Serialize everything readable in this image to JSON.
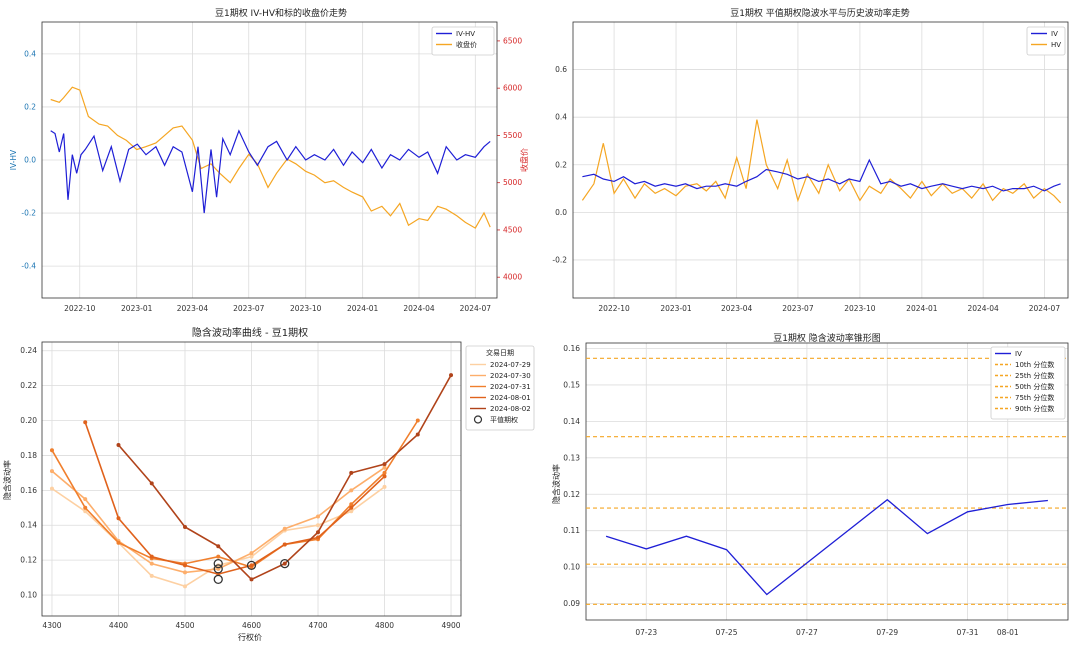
{
  "chart_data": [
    {
      "type": "line",
      "title": "豆1期权 IV-HV和标的收盘价走势",
      "xlabel": "",
      "ylabel": "IV-HV",
      "y2label": "收盘价",
      "xlim": [
        "2022-08-01",
        "2024-08-05"
      ],
      "ylim": [
        -0.52,
        0.52
      ],
      "y2lim": [
        3780,
        6700
      ],
      "yticks": [
        -0.4,
        -0.2,
        0.0,
        0.2,
        0.4
      ],
      "ytick_labels": [
        "-0.4",
        "-0.2",
        "0.0",
        "0.2",
        "0.4"
      ],
      "y2ticks": [
        4000,
        4500,
        5000,
        5500,
        6000,
        6500
      ],
      "y2tick_labels": [
        "4000",
        "4500",
        "5000",
        "5500",
        "6000",
        "6500"
      ],
      "xticks": [
        "2022-10-01",
        "2023-01-01",
        "2023-04-01",
        "2023-07-01",
        "2023-10-01",
        "2024-01-01",
        "2024-04-01",
        "2024-07-01"
      ],
      "xtick_labels": [
        "2022-10",
        "2023-01",
        "2023-04",
        "2023-07",
        "2023-10",
        "2024-01",
        "2024-04",
        "2024-07"
      ],
      "grid": true,
      "legend": "top-right",
      "colors": {
        "series1": "#1f1fd6",
        "series2": "#f5a623",
        "yaxis": "#1f77b4",
        "y2axis": "#d62728"
      },
      "series": [
        {
          "name": "IV-HV",
          "axis": "left",
          "x": [
            "2022-08-15",
            "2022-08-22",
            "2022-08-29",
            "2022-09-05",
            "2022-09-12",
            "2022-09-19",
            "2022-09-26",
            "2022-10-03",
            "2022-10-10",
            "2022-10-24",
            "2022-11-07",
            "2022-11-21",
            "2022-12-05",
            "2022-12-19",
            "2023-01-02",
            "2023-01-16",
            "2023-02-01",
            "2023-02-15",
            "2023-03-01",
            "2023-03-15",
            "2023-04-01",
            "2023-04-10",
            "2023-04-20",
            "2023-05-01",
            "2023-05-10",
            "2023-05-20",
            "2023-06-01",
            "2023-06-15",
            "2023-07-01",
            "2023-07-15",
            "2023-08-01",
            "2023-08-15",
            "2023-09-01",
            "2023-09-15",
            "2023-10-01",
            "2023-10-15",
            "2023-11-01",
            "2023-11-15",
            "2023-12-01",
            "2023-12-15",
            "2024-01-01",
            "2024-01-15",
            "2024-02-01",
            "2024-02-15",
            "2024-03-01",
            "2024-03-15",
            "2024-04-01",
            "2024-04-15",
            "2024-05-01",
            "2024-05-15",
            "2024-06-01",
            "2024-06-15",
            "2024-07-01",
            "2024-07-15",
            "2024-07-25"
          ],
          "y": [
            0.11,
            0.1,
            0.03,
            0.1,
            -0.15,
            0.02,
            -0.05,
            0.02,
            0.04,
            0.09,
            -0.04,
            0.05,
            -0.08,
            0.04,
            0.06,
            0.02,
            0.05,
            -0.02,
            0.05,
            0.03,
            -0.12,
            0.05,
            -0.2,
            0.04,
            -0.14,
            0.08,
            0.02,
            0.11,
            0.03,
            -0.02,
            0.05,
            0.07,
            0.0,
            0.05,
            0.0,
            0.02,
            0.0,
            0.04,
            -0.02,
            0.03,
            -0.01,
            0.04,
            -0.03,
            0.02,
            0.0,
            0.04,
            0.01,
            0.03,
            -0.05,
            0.05,
            0.0,
            0.02,
            0.01,
            0.05,
            0.07
          ]
        },
        {
          "name": "收盘价",
          "axis": "right",
          "x": [
            "2022-08-15",
            "2022-08-29",
            "2022-09-05",
            "2022-09-19",
            "2022-10-01",
            "2022-10-15",
            "2022-11-01",
            "2022-11-15",
            "2022-12-01",
            "2022-12-15",
            "2023-01-01",
            "2023-01-15",
            "2023-02-01",
            "2023-02-15",
            "2023-03-01",
            "2023-03-15",
            "2023-04-01",
            "2023-04-15",
            "2023-05-01",
            "2023-05-15",
            "2023-06-01",
            "2023-06-15",
            "2023-07-01",
            "2023-07-15",
            "2023-08-01",
            "2023-08-15",
            "2023-09-01",
            "2023-09-15",
            "2023-10-01",
            "2023-10-15",
            "2023-11-01",
            "2023-11-15",
            "2023-12-01",
            "2023-12-15",
            "2024-01-01",
            "2024-01-15",
            "2024-02-01",
            "2024-02-15",
            "2024-03-01",
            "2024-03-15",
            "2024-04-01",
            "2024-04-15",
            "2024-05-01",
            "2024-05-15",
            "2024-06-01",
            "2024-06-15",
            "2024-07-01",
            "2024-07-15",
            "2024-07-25"
          ],
          "y": [
            5880,
            5850,
            5900,
            6010,
            5980,
            5700,
            5620,
            5600,
            5500,
            5450,
            5350,
            5380,
            5420,
            5500,
            5580,
            5600,
            5450,
            5150,
            5200,
            5100,
            5000,
            5150,
            5300,
            5200,
            4950,
            5100,
            5250,
            5200,
            5120,
            5080,
            5000,
            5020,
            4950,
            4900,
            4850,
            4700,
            4750,
            4650,
            4780,
            4550,
            4620,
            4600,
            4750,
            4720,
            4650,
            4580,
            4520,
            4680,
            4530
          ]
        }
      ]
    },
    {
      "type": "line",
      "title": "豆1期权 平值期权隐波水平与历史波动率走势",
      "xlabel": "",
      "ylabel": "",
      "xlim": [
        "2022-08-01",
        "2024-08-05"
      ],
      "ylim": [
        -0.36,
        0.8
      ],
      "yticks": [
        -0.2,
        0.0,
        0.2,
        0.4,
        0.6
      ],
      "ytick_labels": [
        "-0.2",
        "0.0",
        "0.2",
        "0.4",
        "0.6"
      ],
      "xticks": [
        "2022-10-01",
        "2023-01-01",
        "2023-04-01",
        "2023-07-01",
        "2023-10-01",
        "2024-01-01",
        "2024-04-01",
        "2024-07-01"
      ],
      "xtick_labels": [
        "2022-10",
        "2023-01",
        "2023-04",
        "2023-07",
        "2023-10",
        "2024-01",
        "2024-04",
        "2024-07"
      ],
      "grid": true,
      "legend": "top-right",
      "colors": {
        "IV": "#1f1fd6",
        "HV": "#f5a623"
      },
      "series": [
        {
          "name": "IV",
          "x": [
            "2022-08-15",
            "2022-09-01",
            "2022-09-15",
            "2022-10-01",
            "2022-10-15",
            "2022-11-01",
            "2022-11-15",
            "2022-12-01",
            "2022-12-15",
            "2023-01-01",
            "2023-01-15",
            "2023-02-01",
            "2023-02-15",
            "2023-03-01",
            "2023-03-15",
            "2023-04-01",
            "2023-04-15",
            "2023-05-01",
            "2023-05-15",
            "2023-06-01",
            "2023-06-15",
            "2023-07-01",
            "2023-07-15",
            "2023-08-01",
            "2023-08-15",
            "2023-09-01",
            "2023-09-15",
            "2023-10-01",
            "2023-10-15",
            "2023-11-01",
            "2023-11-15",
            "2023-12-01",
            "2023-12-15",
            "2024-01-01",
            "2024-01-15",
            "2024-02-01",
            "2024-02-15",
            "2024-03-01",
            "2024-03-15",
            "2024-04-01",
            "2024-04-15",
            "2024-05-01",
            "2024-05-15",
            "2024-06-01",
            "2024-06-15",
            "2024-07-01",
            "2024-07-15",
            "2024-07-25"
          ],
          "y": [
            0.15,
            0.16,
            0.14,
            0.13,
            0.15,
            0.12,
            0.13,
            0.11,
            0.12,
            0.11,
            0.12,
            0.1,
            0.11,
            0.11,
            0.12,
            0.11,
            0.13,
            0.15,
            0.18,
            0.17,
            0.16,
            0.14,
            0.15,
            0.13,
            0.14,
            0.12,
            0.14,
            0.13,
            0.22,
            0.12,
            0.13,
            0.11,
            0.12,
            0.1,
            0.11,
            0.12,
            0.11,
            0.1,
            0.11,
            0.1,
            0.11,
            0.09,
            0.1,
            0.1,
            0.11,
            0.09,
            0.11,
            0.12
          ]
        },
        {
          "name": "HV",
          "x": [
            "2022-08-15",
            "2022-09-01",
            "2022-09-15",
            "2022-10-01",
            "2022-10-15",
            "2022-11-01",
            "2022-11-15",
            "2022-12-01",
            "2022-12-15",
            "2023-01-01",
            "2023-01-15",
            "2023-02-01",
            "2023-02-15",
            "2023-03-01",
            "2023-03-15",
            "2023-04-01",
            "2023-04-15",
            "2023-05-01",
            "2023-05-15",
            "2023-06-01",
            "2023-06-15",
            "2023-07-01",
            "2023-07-15",
            "2023-08-01",
            "2023-08-15",
            "2023-09-01",
            "2023-09-15",
            "2023-10-01",
            "2023-10-15",
            "2023-11-01",
            "2023-11-15",
            "2023-12-01",
            "2023-12-15",
            "2024-01-01",
            "2024-01-15",
            "2024-02-01",
            "2024-02-15",
            "2024-03-01",
            "2024-03-15",
            "2024-04-01",
            "2024-04-15",
            "2024-05-01",
            "2024-05-15",
            "2024-06-01",
            "2024-06-15",
            "2024-07-01",
            "2024-07-15",
            "2024-07-25"
          ],
          "y": [
            0.05,
            0.12,
            0.29,
            0.08,
            0.14,
            0.06,
            0.12,
            0.08,
            0.1,
            0.07,
            0.11,
            0.12,
            0.09,
            0.13,
            0.06,
            0.23,
            0.1,
            0.39,
            0.2,
            0.1,
            0.22,
            0.05,
            0.16,
            0.08,
            0.2,
            0.09,
            0.14,
            0.05,
            0.11,
            0.08,
            0.14,
            0.1,
            0.06,
            0.13,
            0.07,
            0.12,
            0.08,
            0.1,
            0.06,
            0.12,
            0.05,
            0.1,
            0.08,
            0.12,
            0.06,
            0.1,
            0.07,
            0.04
          ]
        }
      ]
    },
    {
      "type": "line",
      "title": "隐含波动率曲线 - 豆1期权",
      "xlabel": "行权价",
      "ylabel": "隐含波动率",
      "xlim": [
        4285,
        4915
      ],
      "ylim": [
        0.088,
        0.245
      ],
      "xticks": [
        4300,
        4400,
        4500,
        4600,
        4700,
        4800,
        4900
      ],
      "xtick_labels": [
        "4300",
        "4400",
        "4500",
        "4600",
        "4700",
        "4800",
        "4900"
      ],
      "yticks": [
        0.1,
        0.12,
        0.14,
        0.16,
        0.18,
        0.2,
        0.22,
        0.24
      ],
      "ytick_labels": [
        "0.10",
        "0.12",
        "0.14",
        "0.16",
        "0.18",
        "0.20",
        "0.22",
        "0.24"
      ],
      "grid": true,
      "legend": "outside-right",
      "legend_title": "交易日期",
      "marker_label": "平值期权",
      "series": [
        {
          "name": "2024-07-29",
          "color": "#fdd0a2",
          "x": [
            4300,
            4350,
            4400,
            4450,
            4500,
            4550,
            4600,
            4650,
            4700,
            4750,
            4800
          ],
          "y": [
            0.161,
            0.148,
            0.13,
            0.111,
            0.105,
            0.117,
            0.122,
            0.137,
            0.14,
            0.148,
            0.162
          ],
          "atm": [
            4550,
            0.109
          ]
        },
        {
          "name": "2024-07-30",
          "color": "#fdae6b",
          "x": [
            4300,
            4350,
            4400,
            4450,
            4500,
            4550,
            4600,
            4650,
            4700,
            4750,
            4800
          ],
          "y": [
            0.171,
            0.155,
            0.131,
            0.118,
            0.113,
            0.115,
            0.124,
            0.138,
            0.145,
            0.16,
            0.173
          ],
          "atm": [
            4550,
            0.115
          ]
        },
        {
          "name": "2024-07-31",
          "color": "#f07f2d",
          "x": [
            4300,
            4350,
            4400,
            4450,
            4500,
            4550,
            4600,
            4650,
            4700,
            4750,
            4800,
            4850
          ],
          "y": [
            0.183,
            0.15,
            0.13,
            0.121,
            0.118,
            0.122,
            0.116,
            0.129,
            0.132,
            0.152,
            0.17,
            0.2
          ],
          "atm": [
            4550,
            0.118
          ]
        },
        {
          "name": "2024-08-01",
          "color": "#e0621c",
          "x": [
            4350,
            4400,
            4450,
            4500,
            4550,
            4600,
            4650,
            4700,
            4750,
            4800
          ],
          "y": [
            0.199,
            0.144,
            0.122,
            0.117,
            0.112,
            0.117,
            0.129,
            0.133,
            0.15,
            0.168
          ],
          "atm": [
            4600,
            0.117
          ]
        },
        {
          "name": "2024-08-02",
          "color": "#b0431a",
          "x": [
            4400,
            4450,
            4500,
            4550,
            4600,
            4650,
            4700,
            4750,
            4800,
            4850,
            4900
          ],
          "y": [
            0.186,
            0.164,
            0.139,
            0.128,
            0.109,
            0.118,
            0.136,
            0.17,
            0.175,
            0.192,
            0.226
          ],
          "atm": [
            4650,
            0.118
          ]
        }
      ]
    },
    {
      "type": "line",
      "title": "豆1期权 隐含波动率锥形图",
      "xlabel": "",
      "ylabel": "隐含波动率",
      "xlim": [
        "2024-07-21 12:00",
        "2024-08-02 12:00"
      ],
      "ylim": [
        0.0855,
        0.1615
      ],
      "yticks": [
        0.09,
        0.1,
        0.11,
        0.12,
        0.13,
        0.14,
        0.15,
        0.16
      ],
      "ytick_labels": [
        "0.09",
        "0.10",
        "0.11",
        "0.12",
        "0.13",
        "0.14",
        "0.15",
        "0.16"
      ],
      "xticks": [
        "2024-07-23",
        "2024-07-25",
        "2024-07-27",
        "2024-07-29",
        "2024-07-31",
        "2024-08-01"
      ],
      "xtick_labels": [
        "07-23",
        "07-25",
        "07-27",
        "07-29",
        "07-31",
        "08-01"
      ],
      "grid": true,
      "legend": "top-right",
      "series": [
        {
          "name": "IV",
          "color": "#1f1fd6",
          "x": [
            "2024-07-22",
            "2024-07-23",
            "2024-07-24",
            "2024-07-25",
            "2024-07-26",
            "2024-07-29",
            "2024-07-30",
            "2024-07-31",
            "2024-08-01",
            "2024-08-02"
          ],
          "y": [
            0.1085,
            0.105,
            0.1085,
            0.1048,
            0.0925,
            0.1185,
            0.1092,
            0.1152,
            0.1172,
            0.1183
          ]
        }
      ],
      "percentiles": [
        {
          "name": "10th 分位数",
          "value": 0.0898
        },
        {
          "name": "25th 分位数",
          "value": 0.1008
        },
        {
          "name": "50th 分位数",
          "value": 0.1162
        },
        {
          "name": "75th 分位数",
          "value": 0.1358
        },
        {
          "name": "90th 分位数",
          "value": 0.1573
        }
      ],
      "percentile_color": "#f5a623"
    }
  ]
}
